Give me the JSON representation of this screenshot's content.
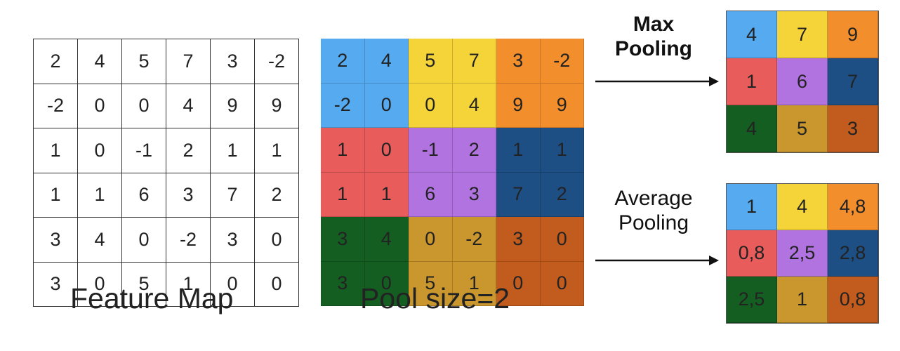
{
  "feature_map": {
    "caption": "Feature Map",
    "rows": [
      [
        "2",
        "4",
        "5",
        "7",
        "3",
        "-2"
      ],
      [
        "-2",
        "0",
        "0",
        "4",
        "9",
        "9"
      ],
      [
        "1",
        "0",
        "-1",
        "2",
        "1",
        "1"
      ],
      [
        "1",
        "1",
        "6",
        "3",
        "7",
        "2"
      ],
      [
        "3",
        "4",
        "0",
        "-2",
        "3",
        "0"
      ],
      [
        "3",
        "0",
        "5",
        "1",
        "0",
        "0"
      ]
    ]
  },
  "pool": {
    "caption": "Pool size=2",
    "block_colors": [
      [
        "#55aaf0",
        "#f5d43a",
        "#f28e2c"
      ],
      [
        "#e85c5c",
        "#b073e0",
        "#1e4f84"
      ],
      [
        "#155e22",
        "#c9972d",
        "#c25c1e"
      ]
    ]
  },
  "max_pooling": {
    "label_line1": "Max",
    "label_line2": "Pooling",
    "rows": [
      [
        "4",
        "7",
        "9"
      ],
      [
        "1",
        "6",
        "7"
      ],
      [
        "4",
        "5",
        "3"
      ]
    ]
  },
  "average_pooling": {
    "label_line1": "Average",
    "label_line2": "Pooling",
    "rows": [
      [
        "1",
        "4",
        "4,8"
      ],
      [
        "0,8",
        "2,5",
        "2,8"
      ],
      [
        "2,5",
        "1",
        "0,8"
      ]
    ]
  }
}
